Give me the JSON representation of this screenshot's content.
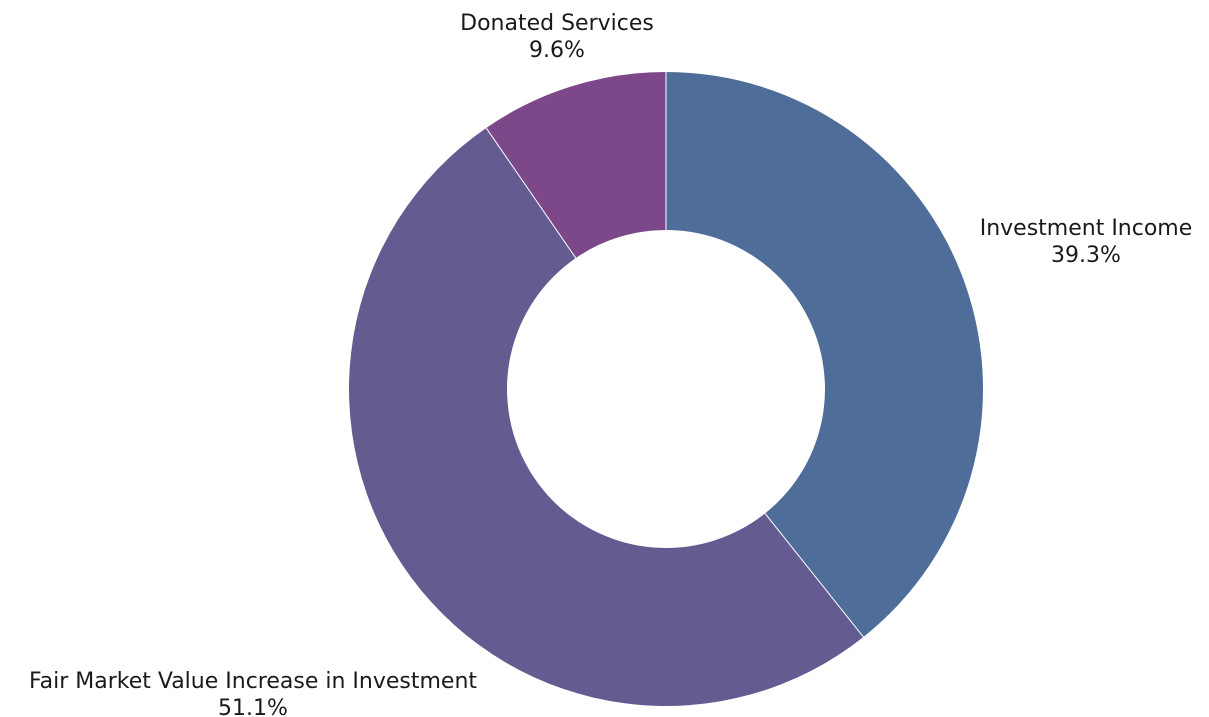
{
  "chart_data": {
    "type": "pie",
    "variant": "donut",
    "start_angle": "12 o'clock",
    "direction": "clockwise",
    "legend": "none",
    "slices": [
      {
        "label": "Investment Income",
        "value": 39.3,
        "display": "39.3%",
        "color": "#4e6e99"
      },
      {
        "label": "Fair Market Value Increase in Investment",
        "value": 51.1,
        "display": "51.1%",
        "color": "#645b91"
      },
      {
        "label": "Donated Services",
        "value": 9.6,
        "display": "9.6%",
        "color": "#7d4889"
      }
    ]
  }
}
